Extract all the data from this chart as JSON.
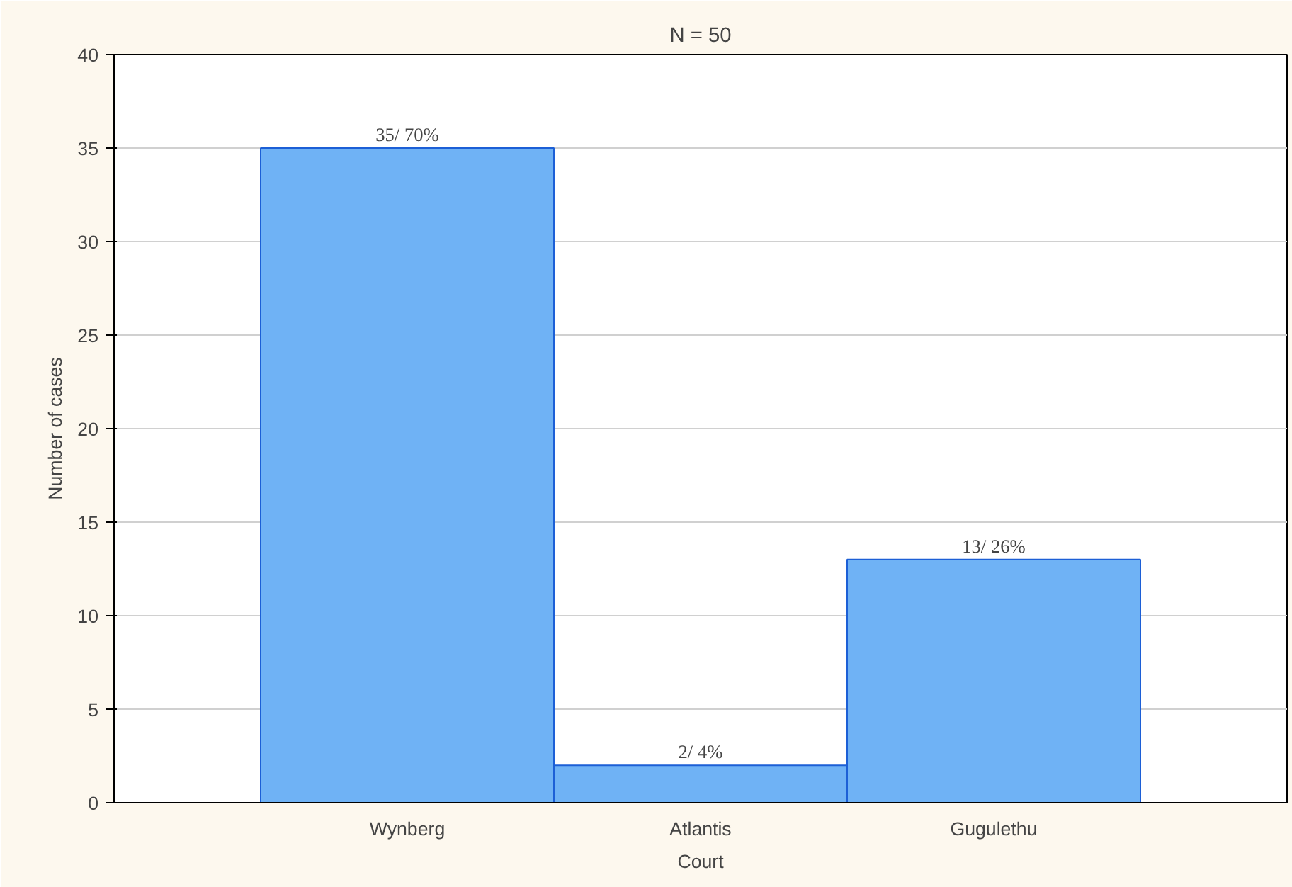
{
  "chart_data": {
    "type": "bar",
    "title": "N = 50",
    "xlabel": "Court",
    "ylabel": "Number of cases",
    "categories": [
      "Wynberg",
      "Atlantis",
      "Gugulethu"
    ],
    "values": [
      35,
      2,
      13
    ],
    "value_labels": [
      "35/ 70%",
      "2/ 4%",
      "13/ 26%"
    ],
    "color": "#6fb2f5",
    "ylim": [
      0,
      40
    ],
    "yticks": [
      0,
      5,
      10,
      15,
      20,
      25,
      30,
      35,
      40
    ],
    "grid": "y"
  }
}
